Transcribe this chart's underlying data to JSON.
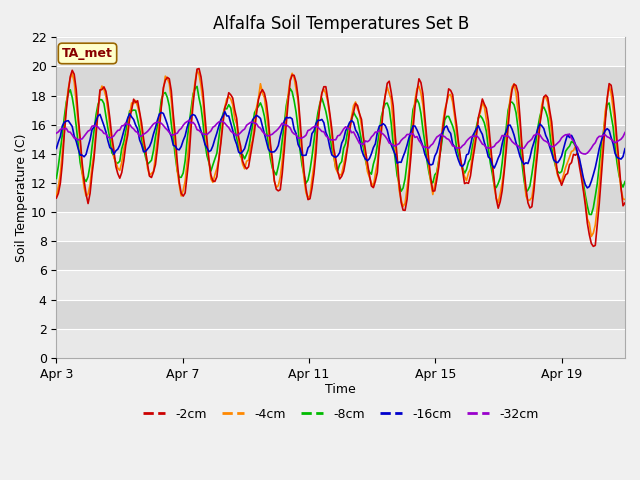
{
  "title": "Alfalfa Soil Temperatures Set B",
  "xlabel": "Time",
  "ylabel": "Soil Temperature (C)",
  "ylim": [
    0,
    22
  ],
  "yticks": [
    0,
    2,
    4,
    6,
    8,
    10,
    12,
    14,
    16,
    18,
    20,
    22
  ],
  "x_tick_labels": [
    "Apr 3",
    "Apr 7",
    "Apr 11",
    "Apr 15",
    "Apr 19"
  ],
  "x_tick_positions": [
    0,
    4,
    8,
    12,
    16
  ],
  "annotation_text": "TA_met",
  "annotation_bg": "#ffffcc",
  "annotation_border": "#996600",
  "series": {
    "-2cm": {
      "color": "#cc0000",
      "lw": 1.2
    },
    "-4cm": {
      "color": "#ff8800",
      "lw": 1.2
    },
    "-8cm": {
      "color": "#00bb00",
      "lw": 1.2
    },
    "-16cm": {
      "color": "#0000cc",
      "lw": 1.2
    },
    "-32cm": {
      "color": "#9900cc",
      "lw": 1.2
    }
  },
  "fig_bg": "#f0f0f0",
  "plot_bg_light": "#e8e8e8",
  "plot_bg_dark": "#d8d8d8",
  "grid_color": "#ffffff",
  "title_fontsize": 12,
  "axis_label_fontsize": 9,
  "tick_fontsize": 9,
  "n_days": 18,
  "n_pts": 288
}
